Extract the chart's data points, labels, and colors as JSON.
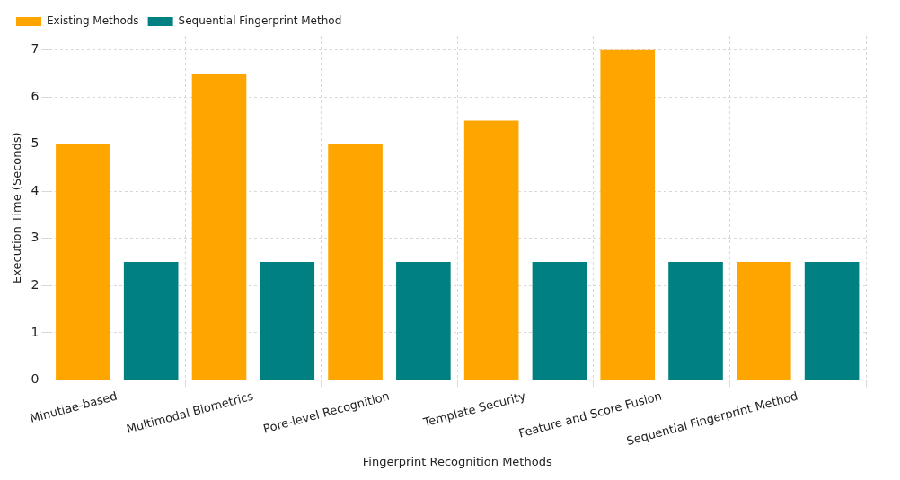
{
  "chart_data": {
    "type": "bar",
    "xlabel": "Fingerprint Recognition Methods",
    "ylabel": "Execution Time (Seconds)",
    "categories": [
      "Minutiae-based",
      "Multimodal Biometrics",
      "Pore-level Recognition",
      "Template Security",
      "Feature and Score Fusion",
      "Sequential Fingerprint Method"
    ],
    "series": [
      {
        "name": "Existing Methods",
        "color": "#ffa500",
        "values": [
          5,
          6.5,
          5,
          5.5,
          7,
          2.5
        ]
      },
      {
        "name": "Sequential Fingerprint Method",
        "color": "#008080",
        "values": [
          2.5,
          2.5,
          2.5,
          2.5,
          2.5,
          2.5
        ]
      }
    ],
    "ylim": [
      0,
      7.3
    ],
    "yticks": [
      0,
      1,
      2,
      3,
      4,
      5,
      6,
      7
    ],
    "grid": true,
    "legend": "top left"
  }
}
